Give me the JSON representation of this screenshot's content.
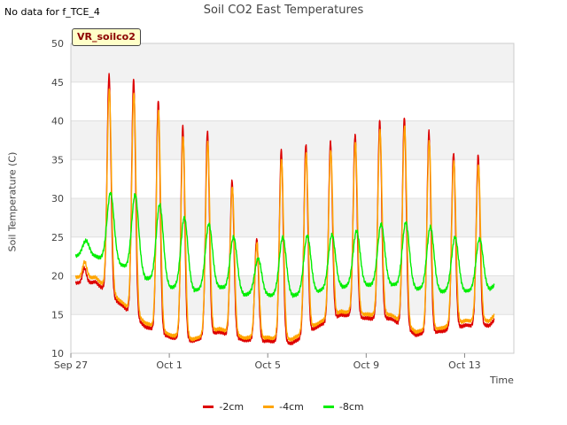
{
  "header": {
    "nodata_text": "No data for f_TCE_4",
    "badge_text": "VR_soilco2"
  },
  "chart_data": {
    "type": "line",
    "title": "Soil CO2 East Temperatures",
    "xlabel": "Time",
    "ylabel": "Soil Temperature (C)",
    "ylim": [
      10,
      50
    ],
    "yticks": [
      10,
      15,
      20,
      25,
      30,
      35,
      40,
      45,
      50
    ],
    "xlim_days": [
      0,
      18
    ],
    "xticks": [
      {
        "day": 0,
        "label": "Sep 27"
      },
      {
        "day": 4,
        "label": "Oct 1"
      },
      {
        "day": 8,
        "label": "Oct 5"
      },
      {
        "day": 12,
        "label": "Oct 9"
      },
      {
        "day": 16,
        "label": "Oct 13"
      }
    ],
    "grid": true,
    "legend_position": "bottom",
    "series": [
      {
        "name": "-2cm",
        "color": "#dd0000",
        "daily_min": [
          19,
          19.2,
          16.4,
          13.5,
          12.1,
          11.6,
          12.8,
          11.7,
          11.6,
          11.3,
          13.4,
          15.0,
          14.5,
          14.5,
          12.4,
          12.8,
          13.6,
          13.6,
          16.8
        ],
        "daily_max": [
          null,
          46,
          45.4,
          42.6,
          39.3,
          38.7,
          32.3,
          24.8,
          36.2,
          37.0,
          37.3,
          38.3,
          40.0,
          40.5,
          38.6,
          35.9,
          35.5,
          31.5
        ]
      },
      {
        "name": "-4cm",
        "color": "#ffa500",
        "daily_min": [
          19.8,
          19.8,
          16.8,
          14.0,
          12.4,
          11.8,
          13.2,
          12.0,
          12.0,
          11.8,
          13.8,
          15.4,
          15.0,
          15.0,
          12.8,
          13.2,
          14.2,
          14.2,
          17.4
        ],
        "daily_max": [
          null,
          44,
          43.6,
          41.3,
          38.0,
          37.2,
          31.5,
          24.2,
          35.0,
          35.8,
          36.2,
          37.2,
          38.8,
          39.3,
          37.4,
          34.8,
          34.3,
          30.6
        ]
      },
      {
        "name": "-8cm",
        "color": "#00ee00",
        "daily_min": [
          22.5,
          22.5,
          21.5,
          19.8,
          18.6,
          18.1,
          18.6,
          17.6,
          17.5,
          17.4,
          18.0,
          18.6,
          18.8,
          18.9,
          18.4,
          18.0,
          18.0,
          18.3,
          20.0
        ],
        "daily_max": [
          null,
          30.7,
          30.5,
          29.2,
          27.5,
          26.7,
          25.0,
          22.2,
          25.0,
          25.2,
          25.3,
          25.8,
          26.7,
          26.9,
          26.3,
          25.0,
          24.8,
          24.2
        ]
      }
    ]
  }
}
